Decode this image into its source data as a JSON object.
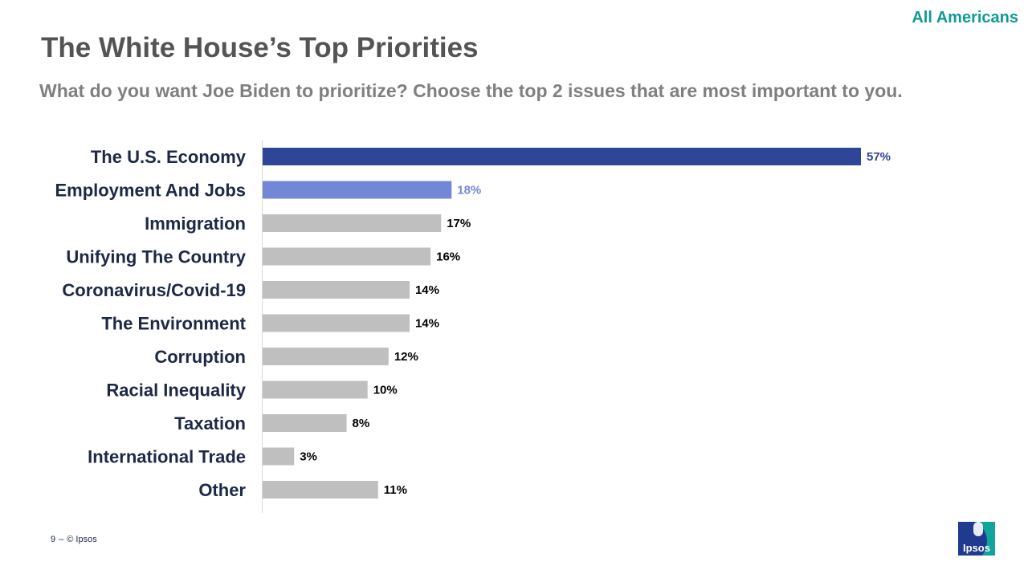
{
  "header": {
    "tag": "All Americans",
    "title": "The White House’s Top Priorities",
    "subtitle": "What do you want Joe Biden to prioritize? Choose the top 2 issues that are most important to you."
  },
  "footer": {
    "page_number": "9",
    "separator": "–",
    "copyright": "© Ipsos",
    "logo_text": "Ipsos"
  },
  "colors": {
    "highlight_primary": "#2f4597",
    "highlight_secondary": "#7487d6",
    "default_bar": "#bfbfbf"
  },
  "chart_data": {
    "type": "bar",
    "orientation": "horizontal",
    "categories": [
      "The U.S. Economy",
      "Employment And Jobs",
      "Immigration",
      "Unifying The Country",
      "Coronavirus/Covid-19",
      "The Environment",
      "Corruption",
      "Racial Inequality",
      "Taxation",
      "International Trade",
      "Other"
    ],
    "values": [
      57,
      18,
      17,
      16,
      14,
      14,
      12,
      10,
      8,
      3,
      11
    ],
    "value_labels": [
      "57%",
      "18%",
      "17%",
      "16%",
      "14%",
      "14%",
      "12%",
      "10%",
      "8%",
      "3%",
      "11%"
    ],
    "bar_colors": [
      "#2f4597",
      "#7487d6",
      "#bfbfbf",
      "#bfbfbf",
      "#bfbfbf",
      "#bfbfbf",
      "#bfbfbf",
      "#bfbfbf",
      "#bfbfbf",
      "#bfbfbf",
      "#bfbfbf"
    ],
    "xlim": [
      0,
      57
    ],
    "grid": false,
    "legend": "none"
  }
}
